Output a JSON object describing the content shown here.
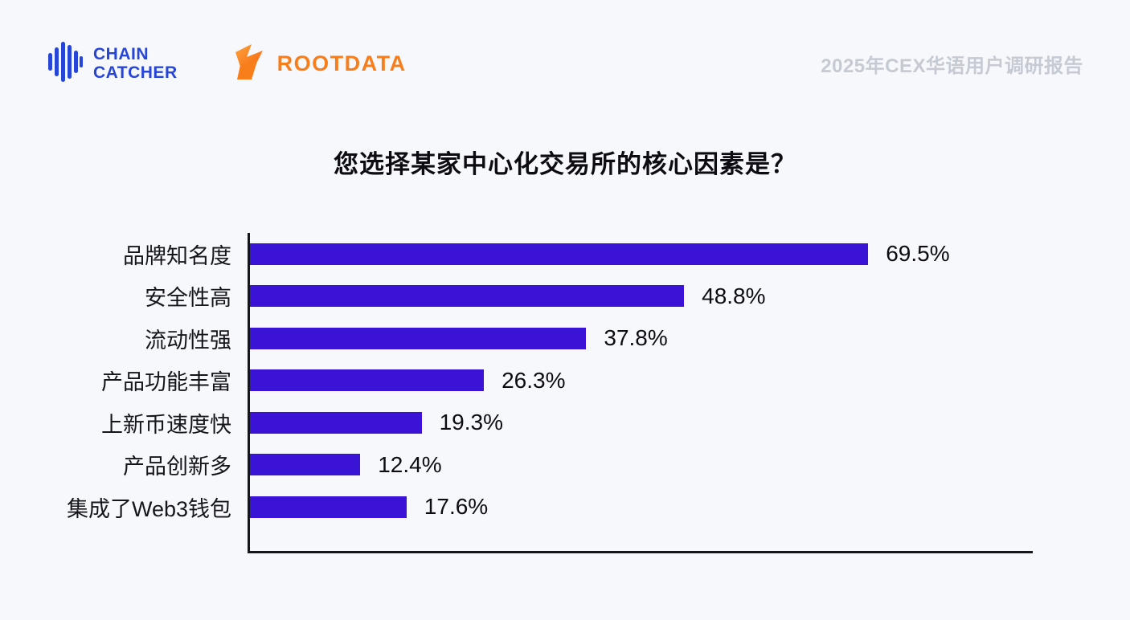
{
  "header": {
    "chaincatcher_line1": "CHAIN",
    "chaincatcher_line2": "CATCHER",
    "rootdata_text": "ROOTDATA",
    "report_title": "2025年CEX华语用户调研报告"
  },
  "colors": {
    "chaincatcher_blue": "#2746d8",
    "rootdata_orange": "#f87d1b",
    "bar_color": "#3a13d6",
    "axis_color": "#15151c",
    "background": "#f7f8fb"
  },
  "chart_data": {
    "type": "bar",
    "orientation": "horizontal",
    "title": "您选择某家中心化交易所的核心因素是？",
    "categories": [
      "品牌知名度",
      "安全性高",
      "流动性强",
      "产品功能丰富",
      "上新币速度快",
      "产品创新多",
      "集成了Web3钱包"
    ],
    "values": [
      69.5,
      48.8,
      37.8,
      26.3,
      19.3,
      12.4,
      17.6
    ],
    "value_labels": [
      "69.5%",
      "48.8%",
      "37.8%",
      "26.3%",
      "19.3%",
      "12.4%",
      "17.6%"
    ],
    "xlabel": "",
    "ylabel": "",
    "xlim": [
      0,
      88
    ],
    "grid": false,
    "legend": false,
    "bar_color": "#3a13d6"
  }
}
